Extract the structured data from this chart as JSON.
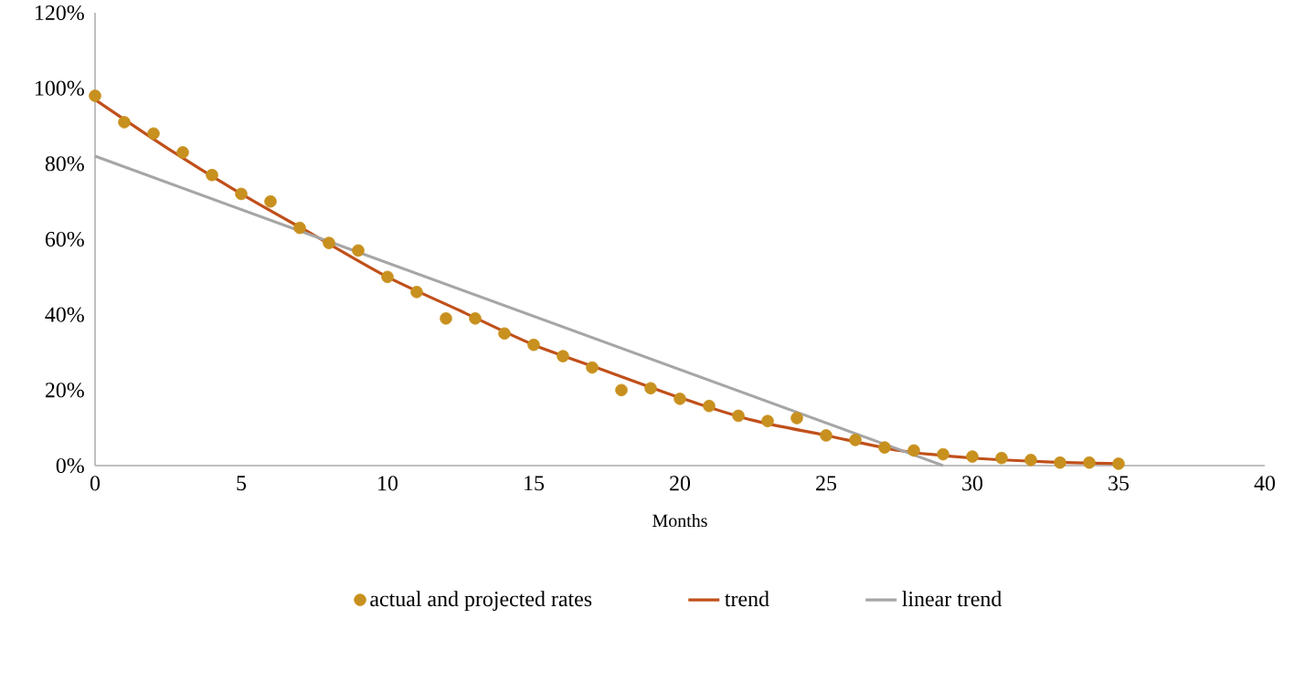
{
  "chart_data": {
    "type": "scatter",
    "xlabel": "Months",
    "xlim": [
      0,
      40
    ],
    "xticks": [
      0,
      5,
      10,
      15,
      20,
      25,
      30,
      35,
      40
    ],
    "ylim": [
      0,
      120
    ],
    "yticks": [
      {
        "value": 0,
        "label": "0%"
      },
      {
        "value": 20,
        "label": "20%"
      },
      {
        "value": 40,
        "label": "40%"
      },
      {
        "value": 60,
        "label": "60%"
      },
      {
        "value": 80,
        "label": "80%"
      },
      {
        "value": 100,
        "label": "100%"
      },
      {
        "value": 120,
        "label": "120%"
      }
    ],
    "legend": "bottom",
    "grid": false,
    "series": [
      {
        "name": "actual and projected rates",
        "marker": "circle",
        "color": "#c8901e",
        "x": [
          0,
          1,
          2,
          3,
          4,
          5,
          6,
          7,
          8,
          9,
          10,
          11,
          12,
          13,
          14,
          15,
          16,
          17,
          18,
          19,
          20,
          21,
          22,
          23,
          24,
          25,
          26,
          27,
          28,
          29,
          30,
          31,
          32,
          33,
          34,
          35
        ],
        "values": [
          98,
          91,
          88,
          83,
          77,
          72,
          70,
          63,
          59,
          57,
          50,
          46,
          39,
          39,
          35,
          32,
          29,
          26,
          20,
          20.5,
          17.7,
          15.8,
          13.2,
          11.8,
          12.6,
          8,
          6.8,
          4.8,
          4,
          3,
          2.4,
          2,
          1.5,
          0.8,
          0.8,
          0.5
        ]
      },
      {
        "name": "trend",
        "type": "line",
        "marker": "none",
        "color": "#c0501a",
        "x": [
          0,
          2.5,
          5,
          7.5,
          10,
          12.5,
          15,
          17.5,
          20,
          22.5,
          25,
          27.5,
          30,
          32.5,
          35
        ],
        "values": [
          97,
          84,
          72,
          61,
          50,
          41,
          32,
          25,
          18,
          12,
          8,
          4,
          2,
          1,
          0.5
        ]
      },
      {
        "name": "linear trend",
        "type": "line",
        "marker": "none",
        "color": "#a6a6a6",
        "x": [
          0,
          29
        ],
        "values": [
          82,
          0
        ]
      }
    ]
  }
}
